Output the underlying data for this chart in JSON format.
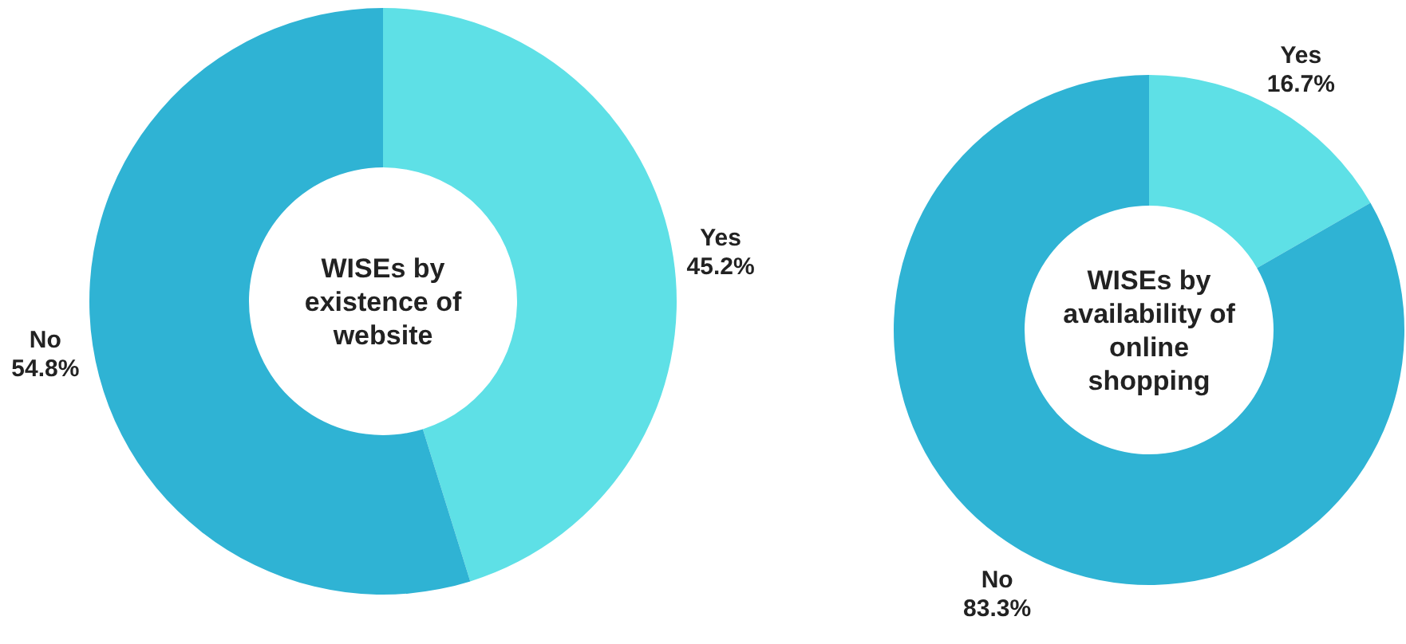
{
  "chart_data": [
    {
      "type": "donut",
      "title": "WISEs by existence of website",
      "categories": [
        "Yes",
        "No"
      ],
      "values": [
        45.2,
        54.8
      ],
      "value_labels": [
        "45.2%",
        "54.8%"
      ],
      "colors": [
        "#5ee0e6",
        "#2fb3d4"
      ]
    },
    {
      "type": "donut",
      "title": "WISEs by availability of online shopping",
      "categories": [
        "Yes",
        "No"
      ],
      "values": [
        16.7,
        83.3
      ],
      "value_labels": [
        "16.7%",
        "83.3%"
      ],
      "colors": [
        "#5ee0e6",
        "#2fb3d4"
      ]
    }
  ]
}
